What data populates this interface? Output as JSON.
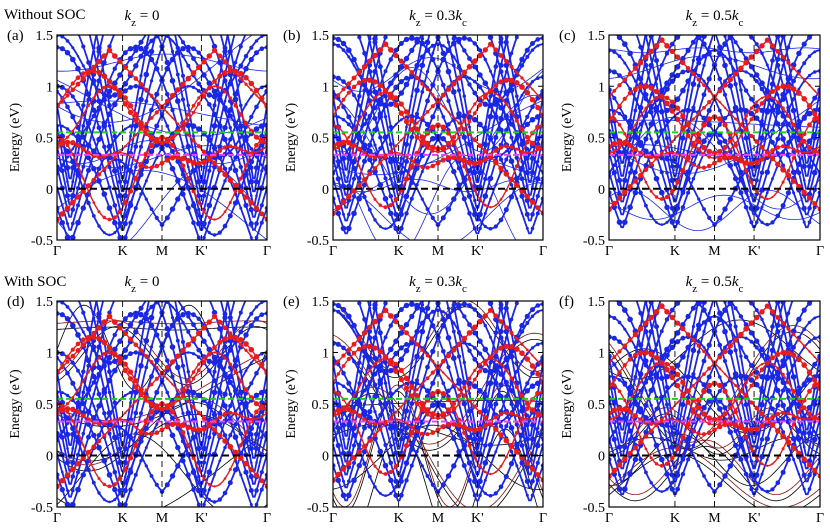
{
  "chart_data": {
    "type": "line",
    "row_titles": [
      "Without SOC",
      "With SOC"
    ],
    "ylabel": "Energy (eV)",
    "ylim": [
      -0.5,
      1.5
    ],
    "yticks": [
      "-0.5",
      "0",
      "0.5",
      "1",
      "1.5"
    ],
    "kpath": [
      "Γ",
      "K",
      "M",
      "K'",
      "Γ"
    ],
    "fermi_level": 0,
    "guide_levels": [
      {
        "energy": 0.55,
        "color": "#22cc22"
      },
      {
        "energy": 0.33,
        "color": "#ee44ee"
      }
    ],
    "colors": {
      "blue": "#1a28e6",
      "red": "#e81c1c",
      "black": "#000000",
      "darkred": "#8b1010"
    },
    "panels": [
      {
        "label": "(a)",
        "kz": "k_z = 0",
        "kz_main": "k",
        "kz_sub": "z",
        "kz_rest": " = 0",
        "kz_tail": "",
        "kz_tail_sub": "",
        "soc": false,
        "phase": 0.0
      },
      {
        "label": "(b)",
        "kz": "k_z = 0.3k_c",
        "kz_main": "k",
        "kz_sub": "z",
        "kz_rest": " = 0.3",
        "kz_tail": "k",
        "kz_tail_sub": "c",
        "soc": false,
        "phase": 0.3
      },
      {
        "label": "(c)",
        "kz": "k_z = 0.5k_c",
        "kz_main": "k",
        "kz_sub": "z",
        "kz_rest": " = 0.5",
        "kz_tail": "k",
        "kz_tail_sub": "c",
        "soc": false,
        "phase": 0.5
      },
      {
        "label": "(d)",
        "kz": "k_z = 0",
        "kz_main": "k",
        "kz_sub": "z",
        "kz_rest": " = 0",
        "kz_tail": "",
        "kz_tail_sub": "",
        "soc": true,
        "phase": 0.0
      },
      {
        "label": "(e)",
        "kz": "k_z = 0.3k_c",
        "kz_main": "k",
        "kz_sub": "z",
        "kz_rest": " = 0.3",
        "kz_tail": "k",
        "kz_tail_sub": "c",
        "soc": true,
        "phase": 0.3
      },
      {
        "label": "(f)",
        "kz": "k_z = 0.5k_c",
        "kz_main": "k",
        "kz_sub": "z",
        "kz_rest": " = 0.5",
        "kz_tail": "k",
        "kz_tail_sub": "c",
        "soc": true,
        "phase": 0.5
      }
    ]
  }
}
